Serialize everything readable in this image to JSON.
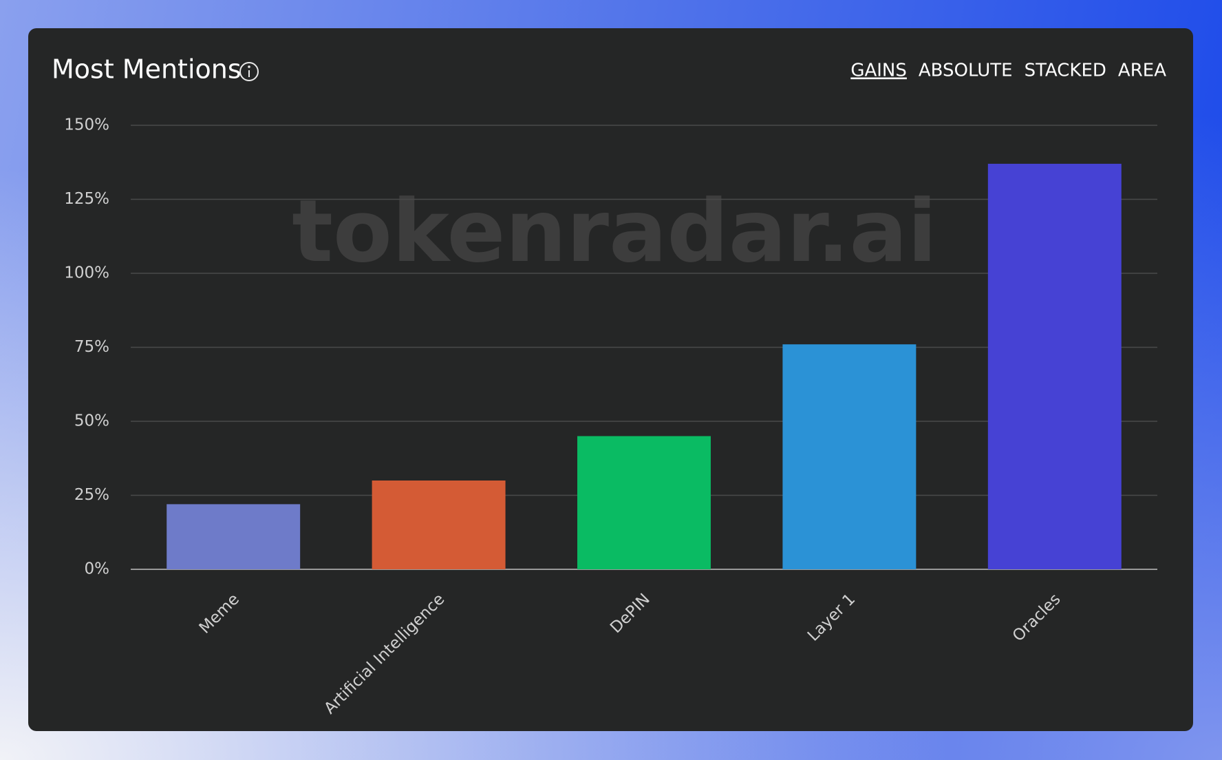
{
  "chart_data": {
    "type": "bar",
    "title": "Most Mentions",
    "watermark": "tokenradar.ai",
    "tabs": [
      "GAINS",
      "ABSOLUTE",
      "STACKED",
      "AREA"
    ],
    "active_tab": 0,
    "categories": [
      "Meme",
      "Artificial Intelligence",
      "DePIN",
      "Layer 1",
      "Oracles"
    ],
    "values": [
      22,
      30,
      45,
      76,
      137
    ],
    "colors": [
      "#6e7bc9",
      "#d45b35",
      "#0abb63",
      "#2b92d6",
      "#4642d4"
    ],
    "ylim": [
      0,
      150
    ],
    "yticks": [
      {
        "value": 0,
        "label": "0%"
      },
      {
        "value": 25,
        "label": "25%"
      },
      {
        "value": 50,
        "label": "50%"
      },
      {
        "value": 75,
        "label": "75%"
      },
      {
        "value": 100,
        "label": "100%"
      },
      {
        "value": 125,
        "label": "125%"
      },
      {
        "value": 150,
        "label": "150%"
      }
    ],
    "grid": true
  }
}
